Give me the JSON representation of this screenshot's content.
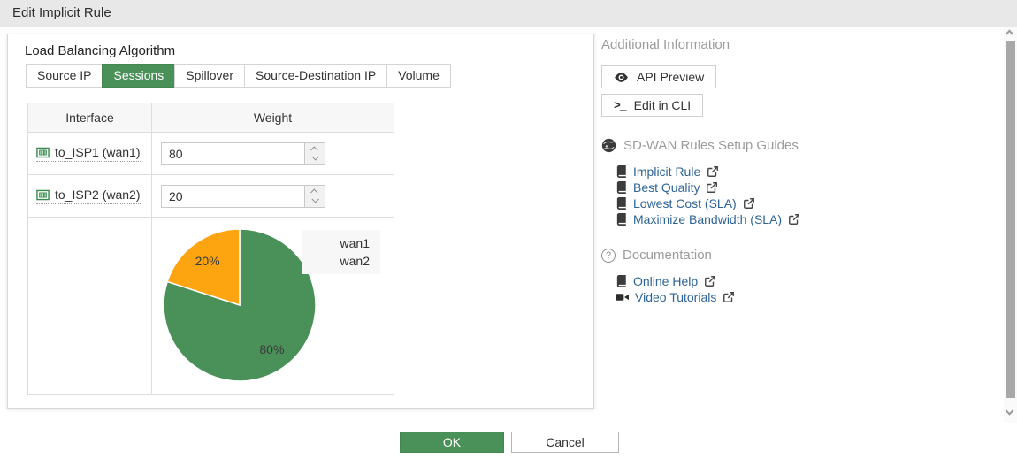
{
  "title_bar": {
    "title": "Edit Implicit Rule"
  },
  "panel": {
    "section_label": "Load Balancing Algorithm",
    "tabs": [
      {
        "label": "Source IP",
        "selected": false
      },
      {
        "label": "Sessions",
        "selected": true
      },
      {
        "label": "Spillover",
        "selected": false
      },
      {
        "label": "Source-Destination IP",
        "selected": false
      },
      {
        "label": "Volume",
        "selected": false
      }
    ],
    "table": {
      "headers": {
        "interface": "Interface",
        "weight": "Weight"
      },
      "rows": [
        {
          "interface": "to_ISP1 (wan1)",
          "weight": "80",
          "icon": "ethernet-port-icon"
        },
        {
          "interface": "to_ISP2 (wan2)",
          "weight": "20",
          "icon": "ethernet-port-icon"
        }
      ]
    }
  },
  "chart_data": {
    "type": "pie",
    "labels": [
      "wan1",
      "wan2"
    ],
    "values": [
      80,
      20
    ],
    "slice_labels": [
      "80%",
      "20%"
    ],
    "colors": [
      "#4a9159",
      "#fca511"
    ],
    "legend": [
      "wan1",
      "wan2"
    ],
    "legend_position": "top-right",
    "start_angle": "top",
    "direction": "clockwise"
  },
  "sidebar": {
    "additional_info": {
      "heading": "Additional Information",
      "api_preview_label": "API Preview",
      "api_preview_icon": "eye-icon",
      "edit_cli_label": "Edit in CLI",
      "edit_cli_icon": "terminal-prompt-icon",
      "cli_glyph": ">_"
    },
    "guides": {
      "heading": "SD-WAN Rules Setup Guides",
      "icon": "globe-icon",
      "links": [
        {
          "label": "Implicit Rule",
          "icon": "book-icon"
        },
        {
          "label": "Best Quality",
          "icon": "book-icon"
        },
        {
          "label": "Lowest Cost (SLA)",
          "icon": "book-icon"
        },
        {
          "label": "Maximize Bandwidth (SLA)",
          "icon": "book-icon"
        }
      ]
    },
    "documentation": {
      "heading": "Documentation",
      "icon": "question-icon",
      "question_glyph": "?",
      "links": [
        {
          "label": "Online Help",
          "icon": "book-icon"
        },
        {
          "label": "Video Tutorials",
          "icon": "video-camera-icon"
        }
      ]
    }
  },
  "footer": {
    "ok_label": "OK",
    "cancel_label": "Cancel"
  },
  "colors": {
    "accent_green": "#4a9159",
    "pie_orange": "#fca511",
    "link_blue": "#2e6496",
    "titlebar_bg": "#e8e8e8",
    "heading_gray": "#9b9b9b"
  }
}
